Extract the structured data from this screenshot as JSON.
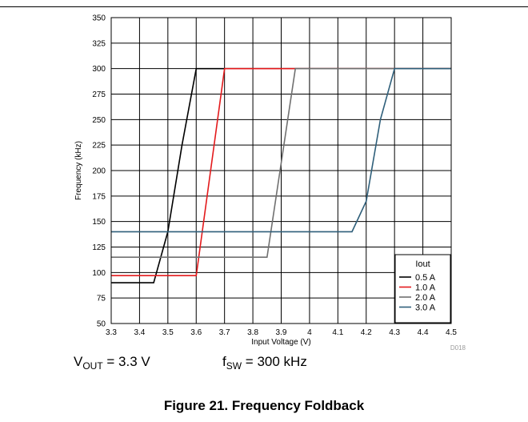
{
  "chart_data": {
    "type": "line",
    "xlabel": "Input Voltage (V)",
    "ylabel": "Frequency (kHz)",
    "xlim": [
      3.3,
      4.5
    ],
    "ylim": [
      50,
      350
    ],
    "xticks": [
      "3.3",
      "3.4",
      "3.5",
      "3.6",
      "3.7",
      "3.8",
      "3.9",
      "4",
      "4.1",
      "4.2",
      "4.3",
      "4.4",
      "4.5"
    ],
    "yticks": [
      "50",
      "75",
      "100",
      "125",
      "150",
      "175",
      "200",
      "225",
      "250",
      "275",
      "300",
      "325",
      "350"
    ],
    "grid": true,
    "legend_title": "Iout",
    "legend_position": "bottom-right",
    "series": [
      {
        "name": "0.5 A",
        "color": "#000000",
        "x": [
          3.3,
          3.45,
          3.5,
          3.55,
          3.6,
          4.5
        ],
        "y": [
          90,
          90,
          140,
          225,
          300,
          300
        ]
      },
      {
        "name": "1.0 A",
        "color": "#e31a1c",
        "x": [
          3.3,
          3.6,
          3.7,
          4.5
        ],
        "y": [
          97,
          97,
          300,
          300
        ]
      },
      {
        "name": "2.0 A",
        "color": "#707070",
        "x": [
          3.3,
          3.85,
          3.95,
          4.5
        ],
        "y": [
          115,
          115,
          300,
          300
        ]
      },
      {
        "name": "3.0 A",
        "color": "#2f5f7a",
        "x": [
          3.3,
          4.15,
          4.2,
          4.25,
          4.3,
          4.5
        ],
        "y": [
          140,
          140,
          170,
          250,
          300,
          300
        ]
      }
    ],
    "figure_code": "D018"
  },
  "conditions": {
    "vout_symbol": "V",
    "vout_sub": "OUT",
    "vout_value": " = 3.3 V",
    "fsw_symbol": "f",
    "fsw_sub": "SW",
    "fsw_value": " = 300 kHz"
  },
  "caption": "Figure 21. Frequency Foldback"
}
